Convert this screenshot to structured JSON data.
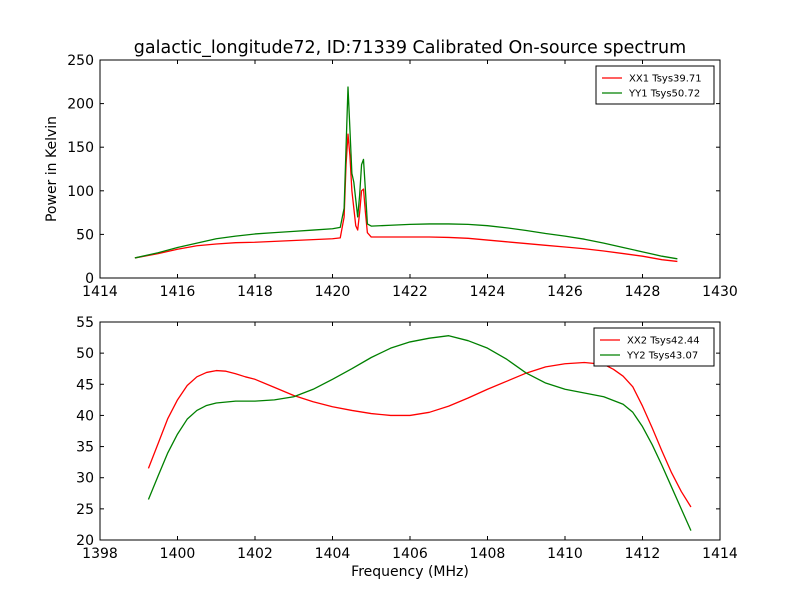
{
  "figure": {
    "title": "galactic_longitude72, ID:71339 Calibrated On-source spectrum"
  },
  "chart_data": [
    {
      "type": "line",
      "title": "galactic_longitude72, ID:71339 Calibrated On-source spectrum",
      "xlabel": "",
      "ylabel": "Power in Kelvin",
      "xlim": [
        1414,
        1430
      ],
      "ylim": [
        0,
        250
      ],
      "xticks": [
        1414,
        1416,
        1418,
        1420,
        1422,
        1424,
        1426,
        1428,
        1430
      ],
      "yticks": [
        0,
        50,
        100,
        150,
        200,
        250
      ],
      "grid": false,
      "legend_position": "top-right",
      "series": [
        {
          "name": "XX1 Tsys39.71",
          "color": "#ff0000",
          "x": [
            1414.9,
            1415.5,
            1416.0,
            1416.5,
            1417.0,
            1417.5,
            1418.0,
            1418.5,
            1419.0,
            1419.5,
            1420.0,
            1420.2,
            1420.3,
            1420.35,
            1420.4,
            1420.45,
            1420.5,
            1420.55,
            1420.6,
            1420.65,
            1420.7,
            1420.75,
            1420.8,
            1420.85,
            1420.9,
            1421.0,
            1421.5,
            1422.0,
            1422.5,
            1423.0,
            1423.5,
            1424.0,
            1424.5,
            1425.0,
            1425.5,
            1426.0,
            1426.5,
            1427.0,
            1427.5,
            1428.0,
            1428.5,
            1428.9
          ],
          "y": [
            23,
            28,
            33,
            37,
            39,
            40.5,
            41,
            42,
            43,
            44,
            45,
            46,
            70,
            130,
            165,
            140,
            100,
            80,
            60,
            55,
            75,
            100,
            102,
            75,
            52,
            47,
            47,
            47,
            47,
            46.5,
            45.5,
            43.5,
            41.5,
            39.5,
            37.5,
            35.5,
            33.5,
            31,
            28,
            25,
            21,
            19
          ]
        },
        {
          "name": "YY1 Tsys50.72",
          "color": "#008000",
          "x": [
            1414.9,
            1415.5,
            1416.0,
            1416.5,
            1417.0,
            1417.5,
            1418.0,
            1418.5,
            1419.0,
            1419.5,
            1420.0,
            1420.2,
            1420.3,
            1420.35,
            1420.4,
            1420.45,
            1420.5,
            1420.55,
            1420.6,
            1420.65,
            1420.7,
            1420.75,
            1420.8,
            1420.85,
            1420.9,
            1421.0,
            1421.5,
            1422.0,
            1422.5,
            1423.0,
            1423.5,
            1424.0,
            1424.5,
            1425.0,
            1425.5,
            1426.0,
            1426.5,
            1427.0,
            1427.5,
            1428.0,
            1428.5,
            1428.9
          ],
          "y": [
            23,
            29,
            35,
            40,
            45,
            48,
            50.5,
            52,
            53.5,
            55,
            56.5,
            58,
            80,
            150,
            219,
            170,
            120,
            110,
            90,
            70,
            95,
            130,
            136,
            100,
            62,
            59.5,
            60.5,
            61.5,
            62,
            62,
            61.5,
            60,
            57.5,
            54.5,
            51,
            48,
            44.5,
            40,
            35,
            30,
            25,
            22
          ]
        }
      ]
    },
    {
      "type": "line",
      "title": "",
      "xlabel": "Frequency (MHz)",
      "ylabel": "",
      "xlim": [
        1398,
        1414
      ],
      "ylim": [
        20,
        55
      ],
      "xticks": [
        1398,
        1400,
        1402,
        1404,
        1406,
        1408,
        1410,
        1412,
        1414
      ],
      "yticks": [
        20,
        25,
        30,
        35,
        40,
        45,
        50,
        55
      ],
      "grid": false,
      "legend_position": "top-right",
      "series": [
        {
          "name": "XX2 Tsys42.44",
          "color": "#ff0000",
          "x": [
            1399.25,
            1399.5,
            1399.75,
            1400.0,
            1400.25,
            1400.5,
            1400.75,
            1401.0,
            1401.25,
            1401.5,
            1401.75,
            1402.0,
            1402.5,
            1403.0,
            1403.5,
            1404.0,
            1404.5,
            1405.0,
            1405.5,
            1406.0,
            1406.5,
            1407.0,
            1407.5,
            1408.0,
            1408.5,
            1409.0,
            1409.5,
            1410.0,
            1410.5,
            1411.0,
            1411.25,
            1411.5,
            1411.75,
            1412.0,
            1412.25,
            1412.5,
            1412.75,
            1413.0,
            1413.25
          ],
          "y": [
            31.5,
            35.5,
            39.5,
            42.5,
            44.8,
            46.2,
            46.9,
            47.2,
            47.1,
            46.7,
            46.2,
            45.8,
            44.5,
            43.2,
            42.2,
            41.4,
            40.8,
            40.3,
            40.0,
            40.0,
            40.5,
            41.5,
            42.8,
            44.2,
            45.5,
            46.8,
            47.8,
            48.3,
            48.5,
            48.2,
            47.4,
            46.3,
            44.6,
            41.5,
            38.0,
            34.3,
            30.8,
            27.8,
            25.3
          ]
        },
        {
          "name": "YY2 Tsys43.07",
          "color": "#008000",
          "x": [
            1399.25,
            1399.5,
            1399.75,
            1400.0,
            1400.25,
            1400.5,
            1400.75,
            1401.0,
            1401.5,
            1402.0,
            1402.5,
            1403.0,
            1403.5,
            1404.0,
            1404.5,
            1405.0,
            1405.5,
            1406.0,
            1406.5,
            1407.0,
            1407.5,
            1408.0,
            1408.5,
            1409.0,
            1409.5,
            1410.0,
            1410.5,
            1411.0,
            1411.5,
            1411.75,
            1412.0,
            1412.25,
            1412.5,
            1412.75,
            1413.0,
            1413.25
          ],
          "y": [
            26.5,
            30.3,
            34.0,
            37.0,
            39.4,
            40.8,
            41.6,
            42.0,
            42.3,
            42.3,
            42.5,
            43.0,
            44.2,
            45.8,
            47.5,
            49.3,
            50.8,
            51.8,
            52.4,
            52.8,
            52.0,
            50.8,
            49.0,
            46.8,
            45.2,
            44.2,
            43.6,
            43.0,
            41.8,
            40.5,
            38.2,
            35.3,
            32.0,
            28.5,
            25.0,
            21.5
          ]
        }
      ]
    }
  ]
}
